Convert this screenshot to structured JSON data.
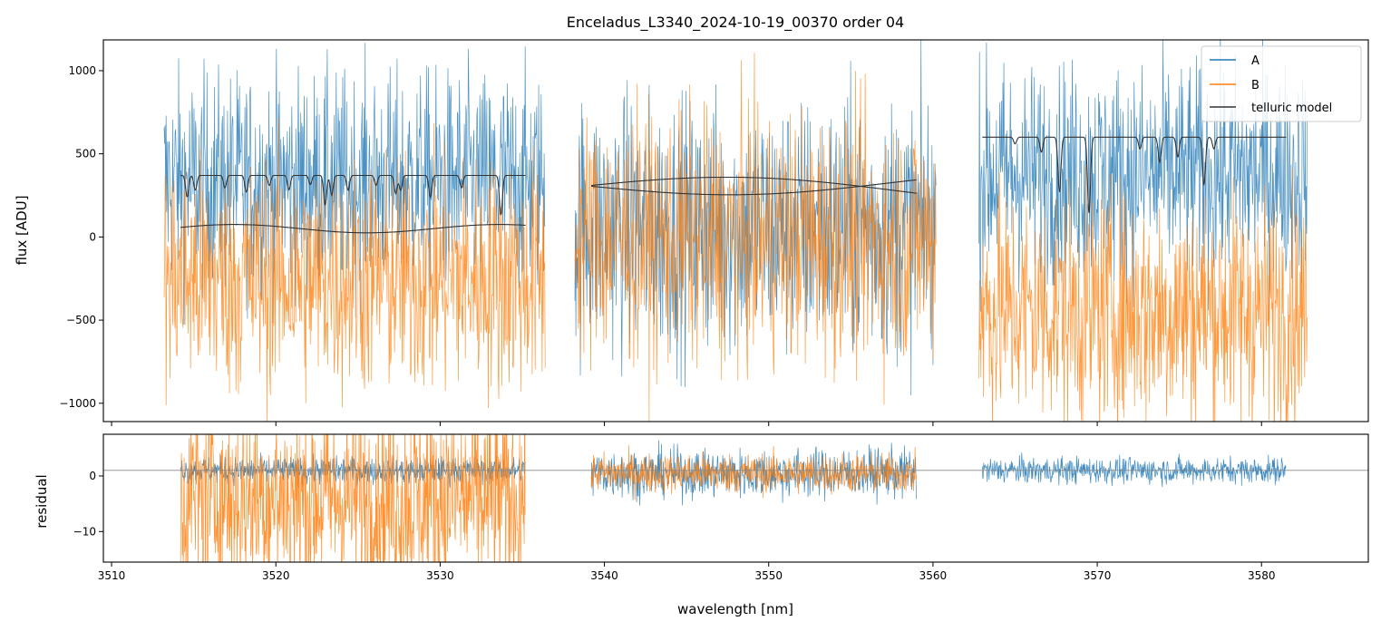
{
  "chart_data": [
    {
      "type": "line",
      "panel": "spectrum",
      "title": "Enceladus_L3340_2024-10-19_00370  order 04",
      "xlabel": "",
      "ylabel": "flux [ADU]",
      "xlim": [
        3509.5,
        3586.5
      ],
      "ylim": [
        -1110,
        1185
      ],
      "xticks": [
        3510,
        3520,
        3530,
        3540,
        3550,
        3560,
        3570,
        3580
      ],
      "yticks": [
        -1000,
        -500,
        0,
        500,
        1000
      ],
      "ytick_labels": [
        "−1000",
        "−500",
        "0",
        "500",
        "1000"
      ],
      "legend": [
        "A",
        "B",
        "telluric model"
      ],
      "legend_position": "top-right",
      "segments": [
        {
          "x": [
            3513.2,
            3536.4
          ],
          "A_mean": 330,
          "A_spread": 330,
          "B_mean": -250,
          "B_spread": 360
        },
        {
          "x": [
            3538.2,
            3560.2
          ],
          "A_mean": 60,
          "A_spread": 390,
          "B_mean": -10,
          "B_spread": 380
        },
        {
          "x": [
            3562.8,
            3582.8
          ],
          "A_mean": 380,
          "A_spread": 330,
          "B_mean": -440,
          "B_spread": 360
        }
      ],
      "telluric": [
        {
          "x": [
            3514.2,
            3535.2
          ],
          "upper_level": 370,
          "lower_level": 60,
          "absorption_lines": [
            {
              "x": 3514.6,
              "depth": 130
            },
            {
              "x": 3515.1,
              "depth": 90
            },
            {
              "x": 3516.9,
              "depth": 75
            },
            {
              "x": 3518.2,
              "depth": 100
            },
            {
              "x": 3519.6,
              "depth": 60
            },
            {
              "x": 3520.8,
              "depth": 85
            },
            {
              "x": 3522.1,
              "depth": 55
            },
            {
              "x": 3523.0,
              "depth": 180
            },
            {
              "x": 3523.4,
              "depth": 120
            },
            {
              "x": 3524.4,
              "depth": 90
            },
            {
              "x": 3526.1,
              "depth": 60
            },
            {
              "x": 3527.3,
              "depth": 110
            },
            {
              "x": 3527.6,
              "depth": 90
            },
            {
              "x": 3529.4,
              "depth": 130
            },
            {
              "x": 3531.3,
              "depth": 75
            },
            {
              "x": 3533.7,
              "depth": 240
            }
          ]
        },
        {
          "x": [
            3539.2,
            3559.0
          ],
          "upper_level": 310,
          "lower_level": 305,
          "absorption_lines": []
        },
        {
          "x": [
            3563.0,
            3581.5
          ],
          "upper_level": 600,
          "lower_level": 600,
          "absorption_lines": [
            {
              "x": 3565.0,
              "depth": 40
            },
            {
              "x": 3566.6,
              "depth": 90
            },
            {
              "x": 3567.7,
              "depth": 330
            },
            {
              "x": 3569.5,
              "depth": 460
            },
            {
              "x": 3572.6,
              "depth": 70
            },
            {
              "x": 3573.8,
              "depth": 150
            },
            {
              "x": 3574.9,
              "depth": 120
            },
            {
              "x": 3576.5,
              "depth": 290
            },
            {
              "x": 3577.1,
              "depth": 70
            }
          ]
        }
      ]
    },
    {
      "type": "line",
      "panel": "residual",
      "title": "",
      "xlabel": "wavelength [nm]",
      "ylabel": "residual",
      "xlim": [
        3509.5,
        3586.5
      ],
      "ylim": [
        -15.5,
        7.5
      ],
      "xticks": [
        3510,
        3520,
        3530,
        3540,
        3550,
        3560,
        3570,
        3580
      ],
      "xtick_labels": [
        "3510",
        "3520",
        "3530",
        "3540",
        "3550",
        "3560",
        "3570",
        "3580"
      ],
      "yticks": [
        -10,
        0
      ],
      "ytick_labels": [
        "−10",
        "0"
      ],
      "reference_line": 1,
      "segments": [
        {
          "x": [
            3514.2,
            3535.2
          ],
          "A_mean": 1,
          "A_spread": 1.2,
          "B_mean": -4,
          "B_spread": 9
        },
        {
          "x": [
            3539.2,
            3559.0
          ],
          "A_mean": 0.5,
          "A_spread": 2.2,
          "B_mean": 0.5,
          "B_spread": 1.8
        },
        {
          "x": [
            3563.0,
            3581.5
          ],
          "A_mean": 1,
          "A_spread": 1.2
        }
      ]
    }
  ],
  "colors": {
    "A": "#1f77b4",
    "B": "#ff7f0e",
    "telluric": "#333333",
    "reference": "#888888"
  }
}
